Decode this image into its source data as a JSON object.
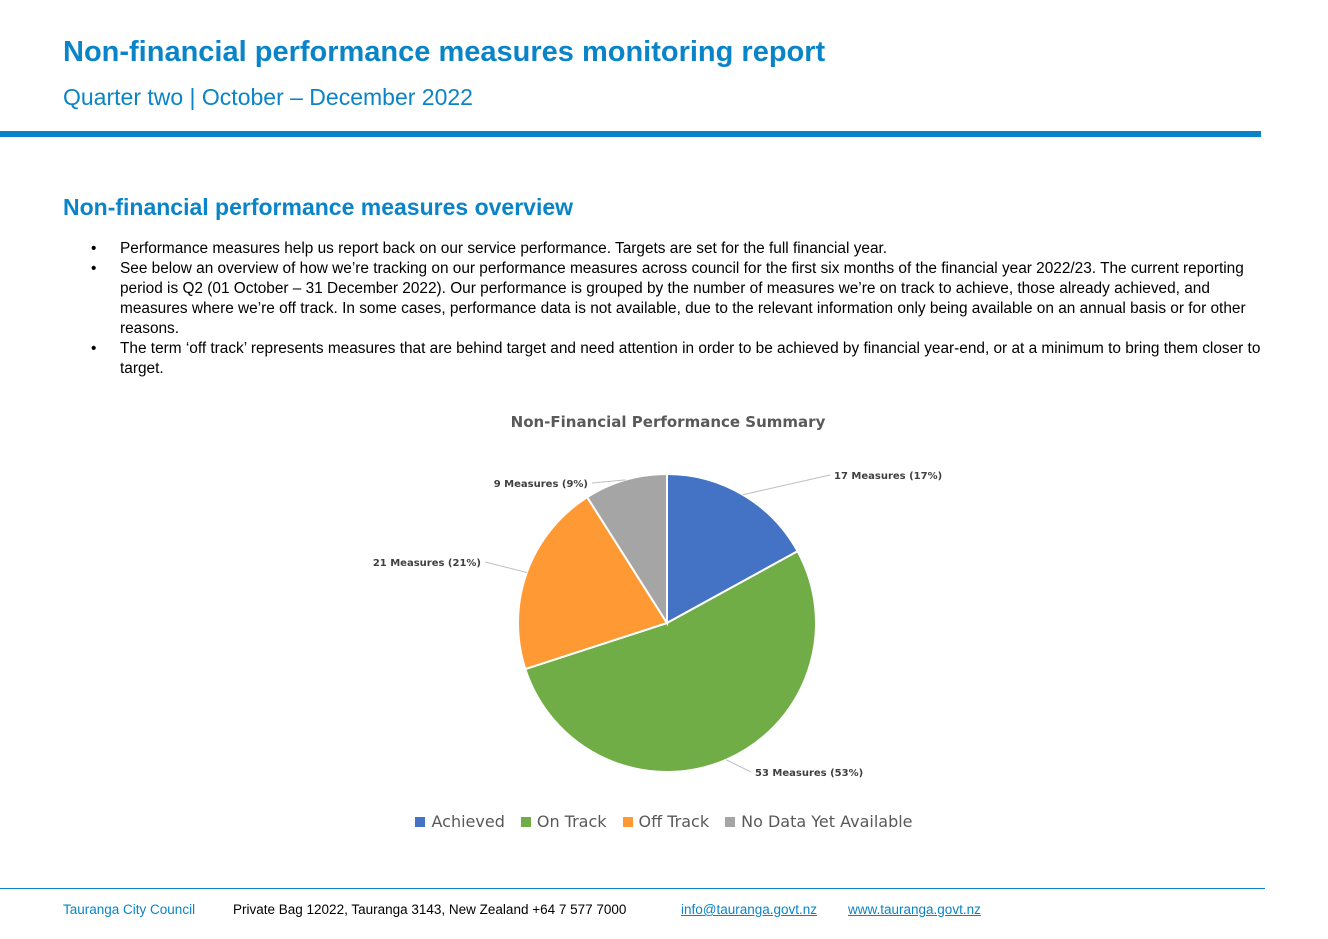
{
  "header": {
    "title": "Non-financial performance measures monitoring report",
    "subtitle": "Quarter two | October – December 2022"
  },
  "overview": {
    "heading": "Non-financial performance measures overview",
    "bullets": [
      "Performance measures help us report back on our service performance. Targets are set for the full financial year.",
      "See below an overview of how we’re tracking on our performance measures across council for the first six months of the financial year 2022/23. The current reporting period is Q2 (01 October – 31 December 2022). Our performance is grouped by the number of measures we’re on track to achieve, those already achieved, and measures where we’re off track. In some cases, performance data is not available, due to the relevant information only being available on an annual basis or for other reasons.",
      "The term ‘off track’ represents measures that are behind target and need attention in order to be achieved by financial year-end, or at a minimum to bring them closer to target."
    ]
  },
  "chart_data": {
    "type": "pie",
    "title": "Non-Financial Performance Summary",
    "categories": [
      "Achieved",
      "On Track",
      "Off Track",
      "No Data Yet Available"
    ],
    "values": [
      17,
      53,
      21,
      9
    ],
    "percentages": [
      17,
      53,
      21,
      9
    ],
    "data_labels": [
      "17 Measures (17%)",
      "53 Measures (53%)",
      "21 Measures (21%)",
      "9 Measures (9%)"
    ],
    "colors": [
      "#4472c4",
      "#70ad47",
      "#ff9933",
      "#a5a5a5"
    ],
    "legend_position": "bottom"
  },
  "footer": {
    "organisation": "Tauranga City Council",
    "address": "Private Bag 12022, Tauranga 3143, New Zealand   +64 7 577 7000",
    "email": "info@tauranga.govt.nz",
    "website": "www.tauranga.govt.nz"
  }
}
